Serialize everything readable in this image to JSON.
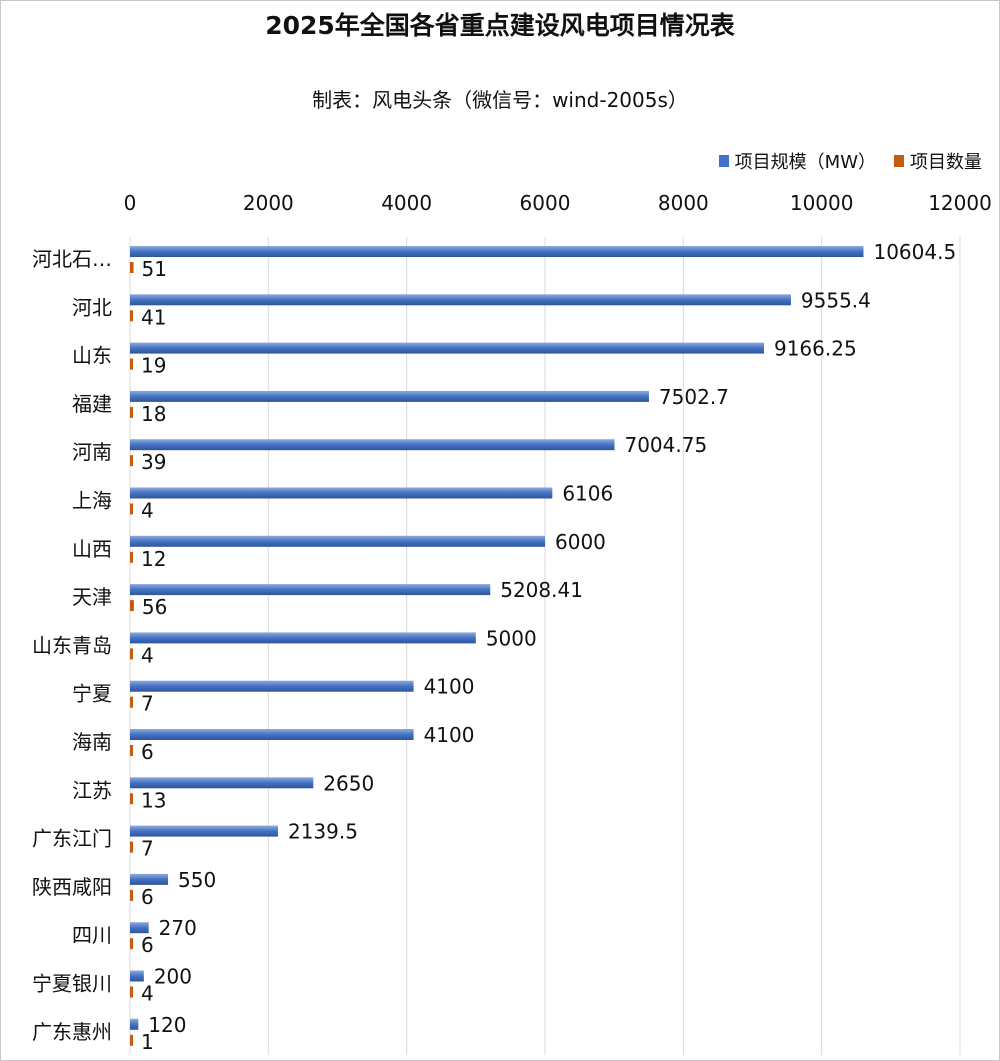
{
  "chart_data": {
    "type": "bar",
    "orientation": "horizontal",
    "title": "2025年全国各省重点建设风电项目情况表",
    "subtitle": "制表：风电头条（微信号：wind-2005s）",
    "categories": [
      "河北石…",
      "河北",
      "山东",
      "福建",
      "河南",
      "上海",
      "山西",
      "天津",
      "山东青岛",
      "宁夏",
      "海南",
      "江苏",
      "广东江门",
      "陕西咸阳",
      "四川",
      "宁夏银川",
      "广东惠州"
    ],
    "series": [
      {
        "name": "项目规模（MW）",
        "color": "#4472c4",
        "values": [
          10604.5,
          9555.4,
          9166.25,
          7502.7,
          7004.75,
          6106,
          6000,
          5208.41,
          5000,
          4100,
          4100,
          2650,
          2139.5,
          550,
          270,
          200,
          120
        ],
        "labels": [
          "10604.5",
          "9555.4",
          "9166.25",
          "7502.7",
          "7004.75",
          "6106",
          "6000",
          "5208.41",
          "5000",
          "4100",
          "4100",
          "2650",
          "2139.5",
          "550",
          "270",
          "200",
          "120"
        ]
      },
      {
        "name": "项目数量",
        "color": "#c55a11",
        "values": [
          51,
          41,
          19,
          18,
          39,
          4,
          12,
          56,
          4,
          7,
          6,
          13,
          7,
          6,
          6,
          4,
          1
        ],
        "labels": [
          "51",
          "41",
          "19",
          "18",
          "39",
          "4",
          "12",
          "56",
          "4",
          "7",
          "6",
          "13",
          "7",
          "6",
          "6",
          "4",
          "1"
        ]
      }
    ],
    "xlim": [
      0,
      12000
    ],
    "xticks": [
      "0",
      "2000",
      "4000",
      "6000",
      "8000",
      "10000",
      "12000"
    ],
    "xaxis_position": "top",
    "grid": "vertical",
    "legend": "top-right"
  }
}
